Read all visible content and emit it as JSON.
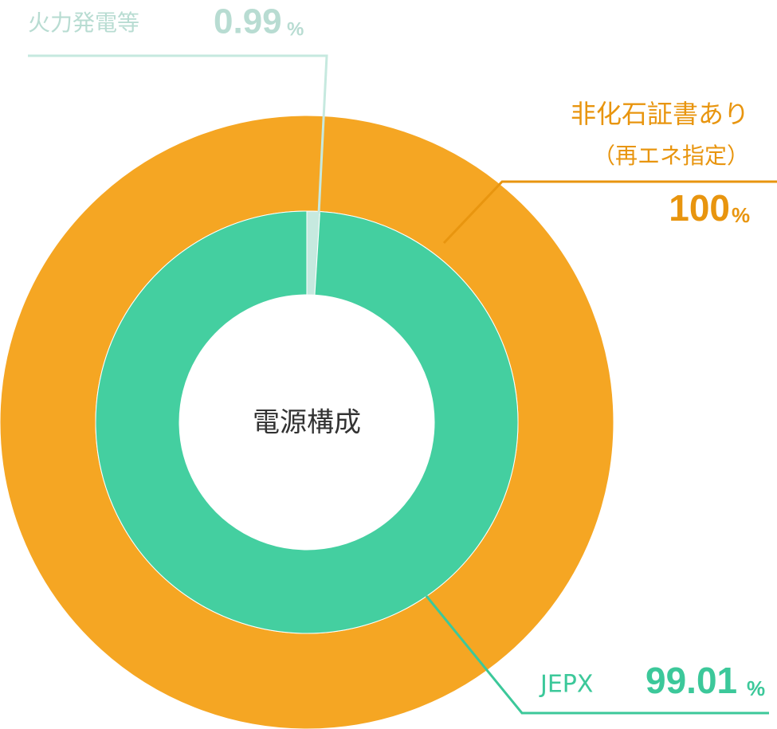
{
  "chart_data": {
    "type": "nested-donut",
    "center_label": "電源構成",
    "unit": "%",
    "series": [
      {
        "name": "非化石証書あり",
        "subname": "（再エネ指定）",
        "ring": "outer",
        "color": "#f5a623",
        "value": 100
      },
      {
        "name": "火力発電等",
        "ring": "inner",
        "color": "#c6e9df",
        "value": 0.99
      },
      {
        "name": "JEPX",
        "ring": "inner",
        "color": "#44cfa0",
        "value": 99.01
      }
    ]
  }
}
